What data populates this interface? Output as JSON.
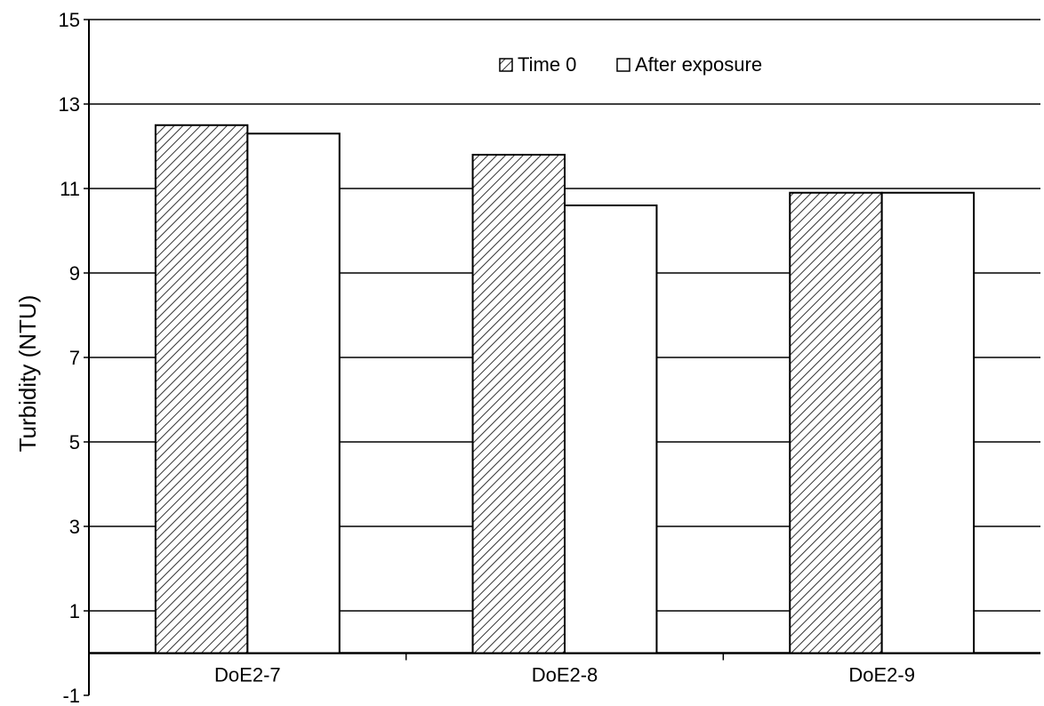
{
  "chart_data": {
    "type": "bar",
    "title": "",
    "xlabel": "",
    "ylabel": "Turbidity (NTU)",
    "ylim": [
      -1,
      15
    ],
    "yticks": [
      -1,
      1,
      3,
      5,
      7,
      9,
      11,
      13,
      15
    ],
    "grid": true,
    "legend_position": "top-center",
    "categories": [
      "DoE2-7",
      "DoE2-8",
      "DoE2-9"
    ],
    "series": [
      {
        "name": "Time 0",
        "values": [
          12.5,
          11.8,
          10.9
        ],
        "fill": "hatched",
        "color": "#000000"
      },
      {
        "name": "After exposure",
        "values": [
          12.3,
          10.6,
          10.9
        ],
        "fill": "white",
        "color": "#000000"
      }
    ]
  }
}
